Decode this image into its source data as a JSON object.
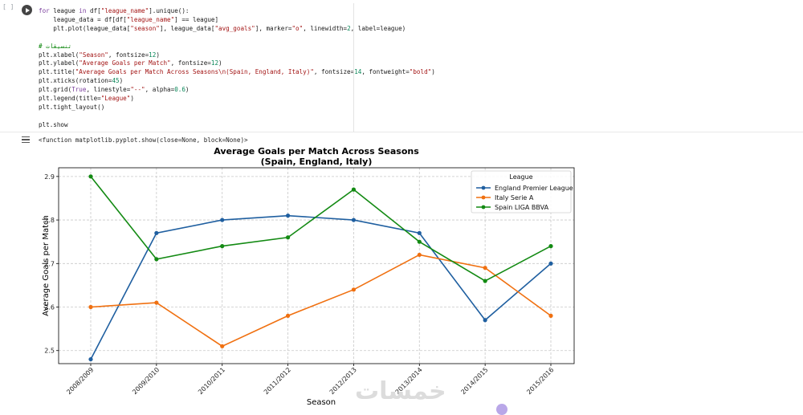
{
  "cell": {
    "exec_count": "[ ]",
    "code_lines": [
      "for league in df[\"league_name\"].unique():",
      "    league_data = df[df[\"league_name\"] == league]",
      "    plt.plot(league_data[\"season\"], league_data[\"avg_goals\"], marker=\"o\", linewidth=2, label=league)",
      "",
      "# تنسيقات",
      "plt.xlabel(\"Season\", fontsize=12)",
      "plt.ylabel(\"Average Goals per Match\", fontsize=12)",
      "plt.title(\"Average Goals per Match Across Seasons\\n(Spain, England, Italy)\", fontsize=14, fontweight=\"bold\")",
      "plt.xticks(rotation=45)",
      "plt.grid(True, linestyle=\"--\", alpha=0.6)",
      "plt.legend(title=\"League\")",
      "plt.tight_layout()",
      "",
      "plt.show"
    ],
    "output_text": "<function matplotlib.pyplot.show(close=None, block=None)>"
  },
  "watermark": "خمسات",
  "colors": {
    "england": "#1f5fa0",
    "italy": "#f07010",
    "spain": "#138a13"
  },
  "chart_data": {
    "type": "line",
    "title": "Average Goals per Match Across Seasons",
    "subtitle": "(Spain, England, Italy)",
    "xlabel": "Season",
    "ylabel": "Average Goals per Match",
    "categories": [
      "2008/2009",
      "2009/2010",
      "2010/2011",
      "2011/2012",
      "2012/2013",
      "2013/2014",
      "2014/2015",
      "2015/2016"
    ],
    "yticks": [
      "2.5",
      "2.6",
      "2.7",
      "2.8",
      "2.9"
    ],
    "ylim": [
      2.47,
      2.92
    ],
    "grid": true,
    "legend_title": "League",
    "legend_position": "top-right",
    "series": [
      {
        "name": "England Premier League",
        "color": "#1f5fa0",
        "values": [
          2.48,
          2.77,
          2.8,
          2.81,
          2.8,
          2.77,
          2.57,
          2.7
        ]
      },
      {
        "name": "Italy Serie A",
        "color": "#f07010",
        "values": [
          2.6,
          2.61,
          2.51,
          2.58,
          2.64,
          2.72,
          2.69,
          2.58
        ]
      },
      {
        "name": "Spain LIGA BBVA",
        "color": "#138a13",
        "values": [
          2.9,
          2.71,
          2.74,
          2.76,
          2.87,
          2.75,
          2.66,
          2.74
        ]
      }
    ]
  }
}
